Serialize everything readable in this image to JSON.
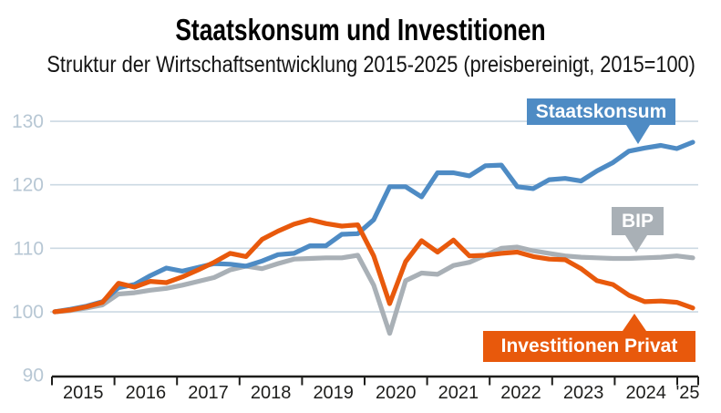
{
  "header": {
    "title": "Staatskonsum und Investitionen",
    "subtitle": "Struktur der Wirtschaftsentwicklung 2015-2025 (preisbereinigt, 2015=100)"
  },
  "labels": {
    "staatskonsum": "Staatskonsum",
    "bip": "BIP",
    "investitionen": "Investitionen Privat"
  },
  "colors": {
    "staatskonsum": "#4e8bc4",
    "bip": "#a9b0b6",
    "investitionen": "#e8590c",
    "grid": "#ccd9e3",
    "y_label": "#b7c7d4",
    "axis": "#1d1d1b"
  },
  "chart_data": {
    "type": "line",
    "title": "Staatskonsum und Investitionen",
    "subtitle": "Struktur der Wirtschaftsentwicklung 2015-2025 (preisbereinigt, 2015=100)",
    "x_unit": "quarter",
    "x_range": [
      "2015 Q1",
      "2025 Q1"
    ],
    "x_tick_labels": [
      "2015",
      "2016",
      "2017",
      "2018",
      "2019",
      "2020",
      "2021",
      "2022",
      "2023",
      "2024",
      "'25"
    ],
    "y_ticks": [
      90,
      100,
      110,
      120,
      130
    ],
    "ylim": [
      90,
      130
    ],
    "grid": true,
    "legend_position": "inline-callouts",
    "series": [
      {
        "name": "BIP",
        "color_key": "bip",
        "values": [
          100.0,
          100.2,
          100.6,
          101.1,
          102.8,
          103.0,
          103.4,
          103.7,
          104.2,
          104.8,
          105.4,
          106.6,
          107.2,
          106.8,
          107.6,
          108.3,
          108.4,
          108.5,
          108.5,
          108.9,
          104.2,
          96.6,
          104.9,
          106.1,
          105.9,
          107.3,
          107.8,
          108.9,
          110.0,
          110.2,
          109.6,
          109.2,
          108.8,
          108.6,
          108.5,
          108.4,
          108.4,
          108.5,
          108.6,
          108.8,
          108.5
        ]
      },
      {
        "name": "Staatskonsum",
        "color_key": "staatskonsum",
        "values": [
          100.0,
          100.4,
          100.9,
          101.6,
          103.8,
          104.3,
          105.7,
          106.9,
          106.4,
          107.0,
          107.6,
          107.5,
          107.2,
          108.0,
          109.0,
          109.2,
          110.4,
          110.4,
          112.2,
          112.3,
          114.5,
          119.7,
          119.7,
          118.1,
          121.9,
          121.9,
          121.4,
          123.0,
          123.1,
          119.7,
          119.4,
          120.8,
          121.0,
          120.6,
          122.2,
          123.5,
          125.3,
          125.8,
          126.2,
          125.7,
          126.7
        ]
      },
      {
        "name": "Investitionen Privat",
        "color_key": "investitionen",
        "values": [
          100.0,
          100.3,
          100.8,
          101.5,
          104.5,
          103.9,
          104.8,
          104.6,
          105.5,
          106.6,
          107.8,
          109.2,
          108.7,
          111.4,
          112.7,
          113.8,
          114.5,
          113.9,
          113.5,
          113.7,
          108.8,
          101.3,
          107.9,
          111.2,
          109.4,
          111.3,
          108.8,
          108.9,
          109.2,
          109.4,
          108.7,
          108.3,
          108.2,
          106.8,
          104.9,
          104.3,
          102.6,
          101.6,
          101.7,
          101.5,
          100.6
        ]
      }
    ]
  }
}
